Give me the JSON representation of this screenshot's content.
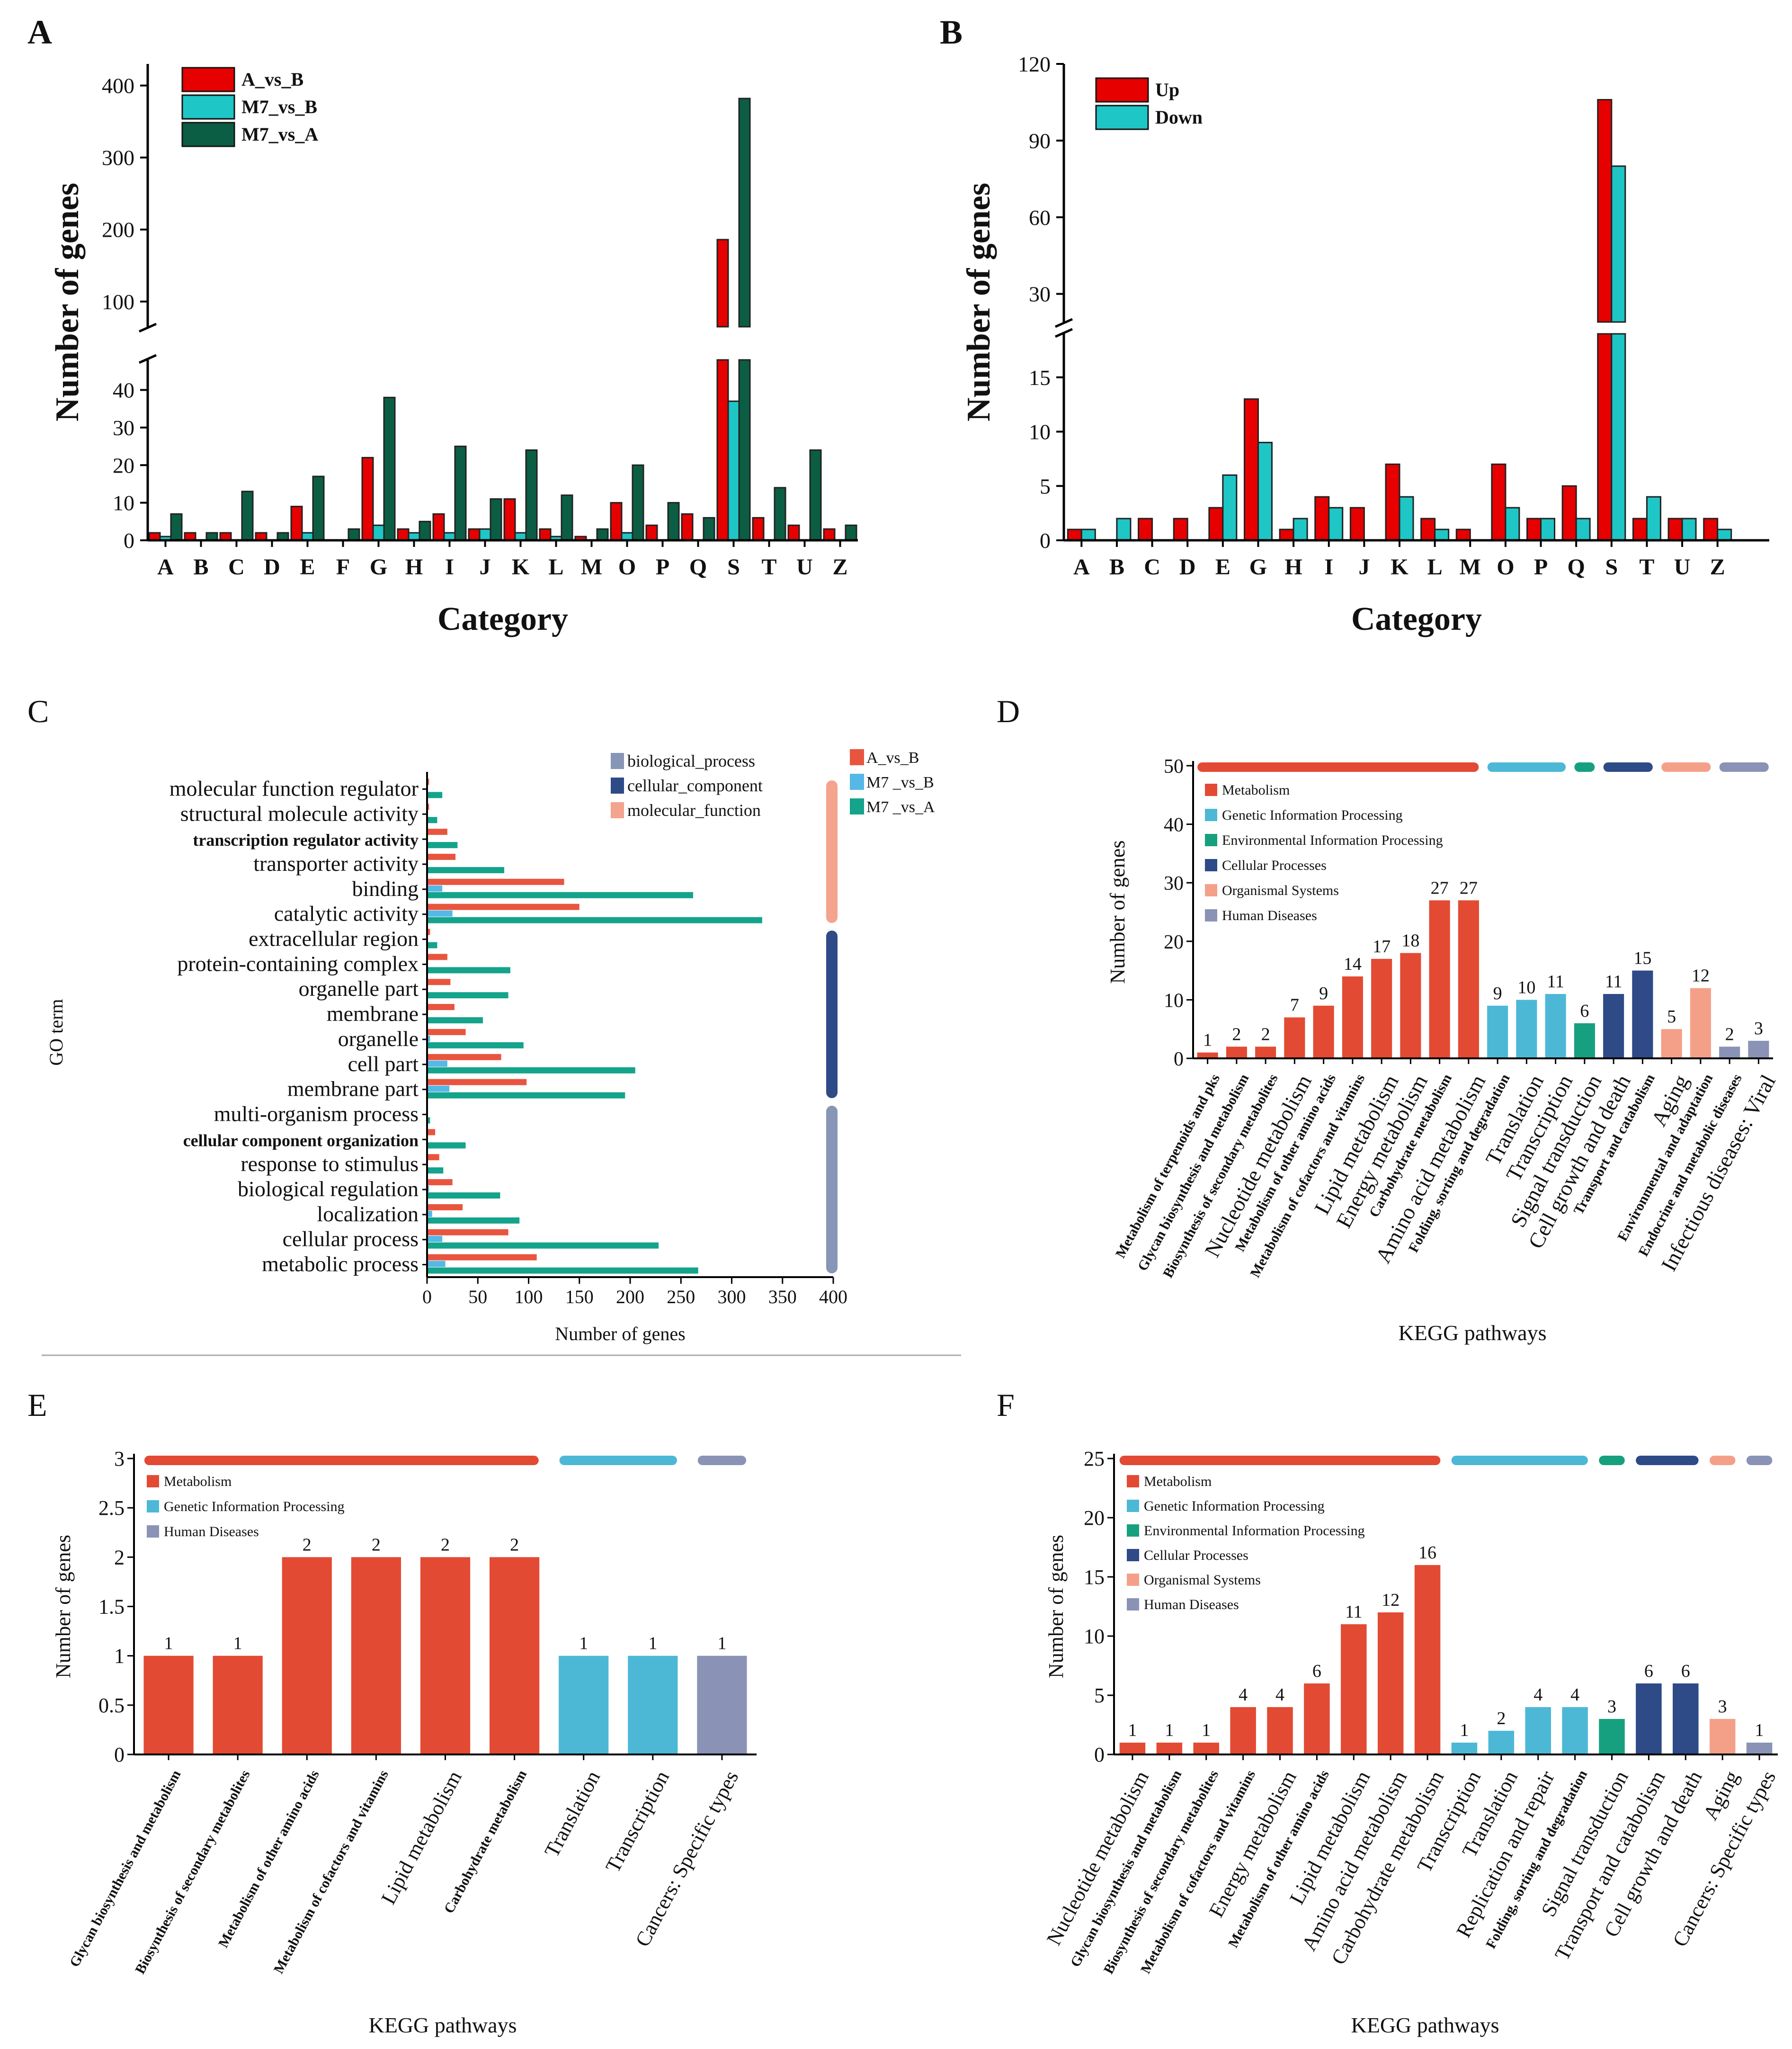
{
  "figure": {
    "divider": true
  },
  "colors": {
    "red": "#e60000",
    "cyan": "#1ec6c6",
    "dkgreen": "#0b5e44",
    "go_red": "#e8553f",
    "go_blue": "#55b8e6",
    "go_green": "#14a38b",
    "go_bp": "#8796b6",
    "go_cc": "#2e4a87",
    "go_mf": "#f4a38c",
    "k_met": "#e34a33",
    "k_gen": "#4db8d6",
    "k_env": "#17a07f",
    "k_cell": "#2e4a87",
    "k_org": "#f4a089",
    "k_hum": "#8a93b5"
  },
  "chart_data": [
    {
      "id": "A",
      "type": "bar",
      "panel_label": "A",
      "xlabel": "Category",
      "ylabel": "Number of genes",
      "categories": [
        "A",
        "B",
        "C",
        "D",
        "E",
        "F",
        "G",
        "H",
        "I",
        "J",
        "K",
        "L",
        "M",
        "O",
        "P",
        "Q",
        "S",
        "T",
        "U",
        "Z"
      ],
      "series": [
        {
          "name": "A_vs_B",
          "values": [
            2,
            2,
            2,
            2,
            9,
            0,
            22,
            3,
            7,
            3,
            11,
            3,
            1,
            10,
            4,
            7,
            186,
            6,
            4,
            3
          ]
        },
        {
          "name": "M7_vs_B",
          "values": [
            1,
            0,
            0,
            0,
            2,
            0,
            4,
            2,
            2,
            3,
            2,
            1,
            0,
            2,
            0,
            0,
            37,
            0,
            0,
            0
          ]
        },
        {
          "name": "M7_vs_A",
          "values": [
            7,
            2,
            13,
            2,
            17,
            3,
            38,
            5,
            25,
            11,
            24,
            12,
            3,
            20,
            10,
            6,
            382,
            14,
            24,
            4
          ]
        }
      ],
      "lower_ylim": [
        0,
        48
      ],
      "lower_ticks": [
        0,
        10,
        20,
        30,
        40
      ],
      "upper_ylim": [
        65,
        430
      ],
      "upper_ticks": [
        100,
        200,
        300,
        400
      ]
    },
    {
      "id": "B",
      "type": "bar",
      "panel_label": "B",
      "xlabel": "Category",
      "ylabel": "Number of genes",
      "categories": [
        "A",
        "B",
        "C",
        "D",
        "E",
        "G",
        "H",
        "I",
        "J",
        "K",
        "L",
        "M",
        "O",
        "P",
        "Q",
        "S",
        "T",
        "U",
        "Z"
      ],
      "series": [
        {
          "name": "Up",
          "values": [
            1,
            0,
            2,
            2,
            3,
            13,
            1,
            4,
            3,
            7,
            2,
            1,
            7,
            2,
            5,
            106,
            2,
            2,
            2
          ]
        },
        {
          "name": "Down",
          "values": [
            1,
            2,
            0,
            0,
            6,
            9,
            2,
            3,
            0,
            4,
            1,
            0,
            3,
            2,
            2,
            80,
            4,
            2,
            1
          ]
        }
      ],
      "lower_ylim": [
        0,
        19
      ],
      "lower_ticks": [
        0,
        5,
        10,
        15
      ],
      "upper_ylim": [
        19,
        120
      ],
      "upper_ticks": [
        30,
        60,
        90,
        120
      ]
    },
    {
      "id": "C",
      "type": "bar",
      "orientation": "horizontal",
      "panel_label": "C",
      "xlabel": "Number of genes",
      "ylabel": "GO term",
      "xlim": [
        0,
        400
      ],
      "xticks": [
        0,
        50,
        100,
        150,
        200,
        250,
        300,
        350,
        400
      ],
      "terms": [
        "molecular function regulator",
        "structural molecule activity",
        "transcription regulator activity",
        "transporter activity",
        "binding",
        "catalytic activity",
        "extracellular region",
        "protein-containing complex",
        "organelle part",
        "membrane",
        "organelle",
        "cell part",
        "membrane part",
        "multi-organism process",
        "cellular component organization",
        "response to stimulus",
        "biological regulation",
        "localization",
        "cellular process",
        "metabolic process"
      ],
      "categories_of_terms": [
        "molecular_function",
        "molecular_function",
        "molecular_function",
        "molecular_function",
        "molecular_function",
        "molecular_function",
        "cellular_component",
        "cellular_component",
        "cellular_component",
        "cellular_component",
        "cellular_component",
        "cellular_component",
        "cellular_component",
        "biological_process",
        "biological_process",
        "biological_process",
        "biological_process",
        "biological_process",
        "biological_process",
        "biological_process"
      ],
      "series": [
        {
          "name": "A_vs_B",
          "values": [
            2,
            2,
            20,
            28,
            135,
            150,
            3,
            20,
            23,
            27,
            38,
            73,
            98,
            0,
            8,
            12,
            25,
            35,
            80,
            108
          ]
        },
        {
          "name": "M7 _vs_B",
          "values": [
            0,
            0,
            0,
            0,
            15,
            25,
            0,
            0,
            0,
            0,
            3,
            20,
            22,
            0,
            0,
            0,
            2,
            5,
            15,
            18
          ]
        },
        {
          "name": "M7 _vs_A",
          "values": [
            15,
            10,
            30,
            76,
            262,
            330,
            10,
            82,
            80,
            55,
            95,
            205,
            195,
            3,
            38,
            16,
            72,
            91,
            228,
            267
          ]
        }
      ],
      "category_legend": [
        "biological_process",
        "cellular_component",
        "molecular_function"
      ]
    },
    {
      "id": "D",
      "type": "bar",
      "panel_label": "D",
      "xlabel": "KEGG pathways",
      "ylabel": "Number of genes",
      "ylim": [
        0,
        50
      ],
      "yticks": [
        0,
        10,
        20,
        30,
        40,
        50
      ],
      "categories": [
        "Metabolism of terpenoids and pks",
        "Glycan biosynthesis and metabolism",
        "Biosynthesis of secondary metabolites",
        "Nucleotide metabolism",
        "Metabolism of other amino acids",
        "Metabolism of cofactors and vitamins",
        "Lipid metabolism",
        "Energy metabolism",
        "Carbohydrate metabolism",
        "Amino acid metabolism",
        "Folding, sorting and degradation",
        "Translation",
        "Transcription",
        "Signal transduction",
        "Cell growth and death",
        "Transport and catabolism",
        "Aging",
        "Environmental and adaptation",
        "Endocrine and metabolic diseases",
        "Infectious diseases: Viral"
      ],
      "values": [
        1,
        2,
        2,
        7,
        9,
        14,
        17,
        18,
        27,
        27,
        9,
        10,
        11,
        6,
        11,
        15,
        5,
        12,
        2,
        3
      ],
      "value_labels": [
        "1",
        "2",
        "2",
        "7",
        "9",
        "14",
        "17",
        "18",
        "27",
        "27",
        "9",
        "10",
        "11",
        "6",
        "11",
        "15",
        "5",
        "12",
        "2",
        "3"
      ],
      "groups": [
        "met",
        "met",
        "met",
        "met",
        "met",
        "met",
        "met",
        "met",
        "met",
        "met",
        "gen",
        "gen",
        "gen",
        "env",
        "cell",
        "cell",
        "org",
        "org",
        "hum",
        "hum"
      ],
      "label_sizes": [
        "s",
        "s",
        "s",
        "l",
        "s",
        "s",
        "l",
        "l",
        "s",
        "l",
        "s",
        "l",
        "l",
        "l",
        "l",
        "s",
        "l",
        "s",
        "s",
        "l"
      ],
      "legend": [
        "Metabolism",
        "Genetic Information Processing",
        "Environmental Information Processing",
        "Cellular Processes",
        "Organismal Systems",
        "Human Diseases"
      ]
    },
    {
      "id": "E",
      "type": "bar",
      "panel_label": "E",
      "xlabel": "KEGG pathways",
      "ylabel": "Number of genes",
      "ylim": [
        0,
        3
      ],
      "yticks": [
        "0",
        "0.5",
        "1",
        "1.5",
        "2",
        "2.5",
        "3"
      ],
      "categories": [
        "Glycan biosynthesis and metabolism",
        "Biosynthesis of  secondary metabolites",
        "Metabolism of other amino acids",
        "Metabolism of cofactors and vitamins",
        "Lipid metabolism",
        "Carbohydrate metabolism",
        "Translation",
        "Transcription",
        "Cancers: Specific types"
      ],
      "values": [
        1,
        1,
        2,
        2,
        2,
        2,
        1,
        1,
        1
      ],
      "value_labels": [
        "1",
        "1",
        "2",
        "2",
        "2",
        "2",
        "1",
        "1",
        "1"
      ],
      "groups": [
        "met",
        "met",
        "met",
        "met",
        "met",
        "met",
        "gen",
        "gen",
        "hum"
      ],
      "label_sizes": [
        "s",
        "s",
        "s",
        "s",
        "l",
        "s",
        "l",
        "l",
        "l"
      ],
      "legend": [
        "Metabolism",
        "Genetic Information Processing",
        "Human Diseases"
      ]
    },
    {
      "id": "F",
      "type": "bar",
      "panel_label": "F",
      "xlabel": "KEGG pathways",
      "ylabel": "Number of genes",
      "ylim": [
        0,
        25
      ],
      "yticks": [
        0,
        5,
        10,
        15,
        20,
        25
      ],
      "categories": [
        "Nucleotide metabolism",
        "Glycan biosynthesis and metabolism",
        "Biosynthesis of secondary metabolites",
        "Metabolism of cofactors and vitamins",
        "Energy metabolism",
        "Metabolism of other amino acids",
        "Lipid metabolism",
        "Amino acid metabolism",
        "Carbohydrate metabolism",
        "Transcription",
        "Translation",
        "Replication and repair",
        "Folding, sorting and degradation",
        "Signal transduction",
        "Transport and catabolism",
        "Cell growth and death",
        "Aging",
        "Cancers: Specific types"
      ],
      "values": [
        1,
        1,
        1,
        4,
        4,
        6,
        11,
        12,
        16,
        1,
        2,
        4,
        4,
        3,
        6,
        6,
        3,
        1
      ],
      "value_labels": [
        "1",
        "1",
        "1",
        "4",
        "4",
        "6",
        "11",
        "12",
        "16",
        "1",
        "2",
        "4",
        "4",
        "3",
        "6",
        "6",
        "3",
        "1"
      ],
      "groups": [
        "met",
        "met",
        "met",
        "met",
        "met",
        "met",
        "met",
        "met",
        "met",
        "gen",
        "gen",
        "gen",
        "gen",
        "env",
        "cell",
        "cell",
        "org",
        "hum"
      ],
      "label_sizes": [
        "l",
        "s",
        "s",
        "s",
        "l",
        "s",
        "l",
        "l",
        "l",
        "l",
        "l",
        "l",
        "s",
        "l",
        "l",
        "l",
        "l",
        "l"
      ],
      "legend": [
        "Metabolism",
        "Genetic Information Processing",
        "Environmental Information Processing",
        "Cellular Processes",
        "Organismal Systems",
        "Human Diseases"
      ]
    }
  ]
}
